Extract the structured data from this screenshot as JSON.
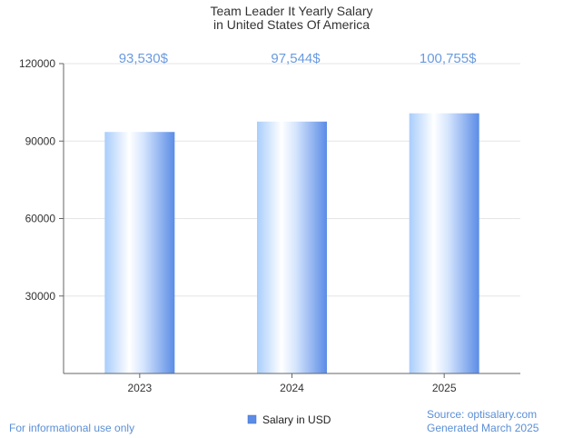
{
  "chart_data": {
    "type": "bar",
    "title": [
      "Team Leader It Yearly Salary",
      "in United States Of America"
    ],
    "categories": [
      "2023",
      "2024",
      "2025"
    ],
    "series": [
      {
        "name": "Salary in USD",
        "values": [
          93530,
          97544,
          100755
        ]
      }
    ],
    "data_labels": [
      "93,530$",
      "97,544$",
      "100,755$"
    ],
    "yticks": [
      30000,
      60000,
      90000,
      120000
    ],
    "ylim": [
      0,
      120000
    ],
    "grid": true,
    "legend_position": "bottom-center",
    "colors": {
      "bar_light": "#ffffff",
      "bar_mid": "#c5defe",
      "bar_dark": "#5b8ce6",
      "label": "#6a9be0"
    }
  },
  "footer": {
    "left": "For informational use only",
    "source": "Source: optisalary.com",
    "generated": "Generated March 2025"
  }
}
